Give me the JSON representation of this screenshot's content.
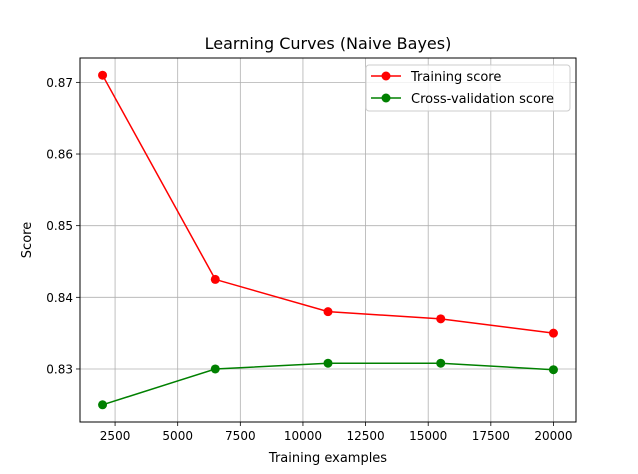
{
  "chart_data": {
    "type": "line",
    "title": "Learning Curves (Naive Bayes)",
    "xlabel": "Training examples",
    "ylabel": "Score",
    "x": [
      2000,
      6500,
      11000,
      15500,
      20000
    ],
    "series": [
      {
        "name": "Training score",
        "color": "#ff0000",
        "values": [
          0.871,
          0.8425,
          0.838,
          0.837,
          0.835
        ]
      },
      {
        "name": "Cross-validation score",
        "color": "#008000",
        "values": [
          0.825,
          0.83,
          0.8308,
          0.8308,
          0.8299
        ]
      }
    ],
    "xlim": [
      1100,
      20900
    ],
    "ylim": [
      0.8226,
      0.8734
    ],
    "xticks": [
      2500,
      5000,
      7500,
      10000,
      12500,
      15000,
      17500,
      20000
    ],
    "xtick_labels": [
      "2500",
      "5000",
      "7500",
      "10000",
      "12500",
      "15000",
      "17500",
      "20000"
    ],
    "yticks": [
      0.83,
      0.84,
      0.85,
      0.86,
      0.87
    ],
    "ytick_labels": [
      "0.83",
      "0.84",
      "0.85",
      "0.86",
      "0.87"
    ],
    "grid": true,
    "legend_position": "top-right",
    "grid_color": "#b0b0b0",
    "frame_color": "#000000"
  }
}
